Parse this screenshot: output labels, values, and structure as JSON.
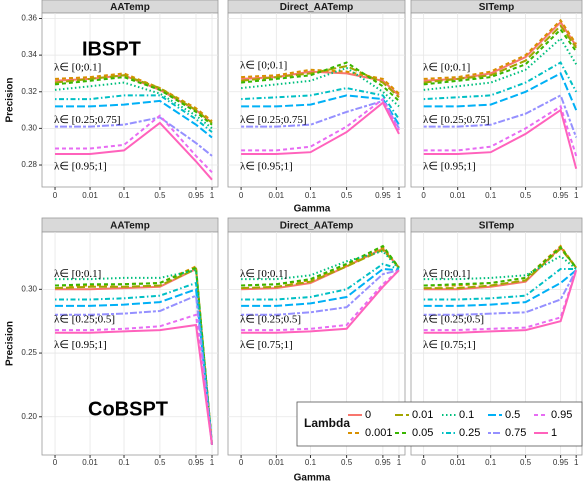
{
  "chart_data": {
    "type": "line",
    "x_label": "Gamma",
    "y_label": "Precision",
    "legend_title": "Lambda",
    "x": [
      0,
      0.01,
      0.1,
      0.5,
      0.95,
      1
    ],
    "xticks": [
      0,
      0.01,
      0.1,
      0.5,
      0.95,
      1
    ],
    "series": [
      {
        "name": "0",
        "color": "#F8766D",
        "linetype": "solid"
      },
      {
        "name": "0.001",
        "color": "#D89000",
        "linetype": "dashed"
      },
      {
        "name": "0.01",
        "color": "#A3A500",
        "linetype": "longdash"
      },
      {
        "name": "0.05",
        "color": "#39B600",
        "linetype": "dashed"
      },
      {
        "name": "0.1",
        "color": "#00BF7D",
        "linetype": "dotted"
      },
      {
        "name": "0.25",
        "color": "#00BFC4",
        "linetype": "dotdash"
      },
      {
        "name": "0.5",
        "color": "#00B0F6",
        "linetype": "longdash"
      },
      {
        "name": "0.75",
        "color": "#9590FF",
        "linetype": "twodash"
      },
      {
        "name": "0.95",
        "color": "#E76BF3",
        "linetype": "dashed"
      },
      {
        "name": "1",
        "color": "#FF62BC",
        "linetype": "solid"
      }
    ],
    "rows": [
      {
        "label": "IBSPT",
        "ylim": [
          0.268,
          0.363
        ],
        "yticks": [
          0.28,
          {
            "value": 0.3,
            "label": "0.30"
          },
          0.32,
          0.34,
          0.36
        ],
        "panels": [
          {
            "title": "AATemp",
            "annotations": [
              "λ∈ [0;0.1]",
              "λ∈ [0.25;0.75]",
              "λ∈ [0.95;1]"
            ],
            "values": [
              [
                0.326,
                0.327,
                0.329,
                0.321,
                0.31,
                0.303
              ],
              [
                0.327,
                0.328,
                0.33,
                0.322,
                0.311,
                0.304
              ],
              [
                0.325,
                0.327,
                0.329,
                0.322,
                0.31,
                0.303
              ],
              [
                0.324,
                0.326,
                0.328,
                0.321,
                0.309,
                0.302
              ],
              [
                0.321,
                0.323,
                0.325,
                0.319,
                0.307,
                0.3
              ],
              [
                0.316,
                0.316,
                0.318,
                0.318,
                0.305,
                0.298
              ],
              [
                0.312,
                0.312,
                0.313,
                0.315,
                0.302,
                0.295
              ],
              [
                0.301,
                0.301,
                0.302,
                0.306,
                0.292,
                0.285
              ],
              [
                0.289,
                0.289,
                0.291,
                0.307,
                0.285,
                0.276
              ],
              [
                0.286,
                0.286,
                0.288,
                0.303,
                0.282,
                0.272
              ]
            ]
          },
          {
            "title": "Direct_AATemp",
            "annotations": [
              "λ∈ [0;0.1]",
              "λ∈ [0.25;0.75]",
              "λ∈ [0.95;1]"
            ],
            "values": [
              [
                0.327,
                0.328,
                0.331,
                0.33,
                0.326,
                0.318
              ],
              [
                0.328,
                0.329,
                0.332,
                0.331,
                0.327,
                0.319
              ],
              [
                0.326,
                0.328,
                0.33,
                0.334,
                0.325,
                0.317
              ],
              [
                0.325,
                0.327,
                0.329,
                0.336,
                0.323,
                0.315
              ],
              [
                0.322,
                0.324,
                0.326,
                0.333,
                0.32,
                0.312
              ],
              [
                0.316,
                0.317,
                0.318,
                0.322,
                0.318,
                0.305
              ],
              [
                0.312,
                0.312,
                0.313,
                0.318,
                0.316,
                0.302
              ],
              [
                0.301,
                0.301,
                0.302,
                0.309,
                0.315,
                0.3
              ],
              [
                0.288,
                0.288,
                0.29,
                0.301,
                0.316,
                0.299
              ],
              [
                0.286,
                0.286,
                0.287,
                0.298,
                0.314,
                0.297
              ]
            ]
          },
          {
            "title": "SITemp",
            "annotations": [
              "λ∈ [0;0.1]",
              "λ∈ [0.25;0.75]",
              "λ∈ [0.95;1]"
            ],
            "values": [
              [
                0.326,
                0.327,
                0.33,
                0.339,
                0.358,
                0.345
              ],
              [
                0.327,
                0.328,
                0.331,
                0.34,
                0.359,
                0.346
              ],
              [
                0.325,
                0.327,
                0.329,
                0.337,
                0.356,
                0.344
              ],
              [
                0.324,
                0.326,
                0.328,
                0.335,
                0.354,
                0.342
              ],
              [
                0.321,
                0.323,
                0.325,
                0.332,
                0.349,
                0.335
              ],
              [
                0.316,
                0.317,
                0.318,
                0.325,
                0.336,
                0.32
              ],
              [
                0.312,
                0.312,
                0.313,
                0.32,
                0.33,
                0.31
              ],
              [
                0.301,
                0.301,
                0.302,
                0.308,
                0.318,
                0.295
              ],
              [
                0.288,
                0.288,
                0.29,
                0.3,
                0.312,
                0.285
              ],
              [
                0.286,
                0.286,
                0.287,
                0.297,
                0.31,
                0.278
              ]
            ]
          }
        ]
      },
      {
        "label": "CoBSPT",
        "ylim": [
          0.17,
          0.345
        ],
        "yticks": [
          {
            "value": 0.2,
            "label": "0.20"
          },
          0.25,
          {
            "value": 0.3,
            "label": "0.30"
          }
        ],
        "panels": [
          {
            "title": "AATemp",
            "annotations": [
              "λ∈ [0;0.1]",
              "λ∈ [0.25;0.5]",
              "λ∈ [0.95;1]"
            ],
            "values": [
              [
                0.3,
                0.3,
                0.301,
                0.302,
                0.316,
                0.178
              ],
              [
                0.303,
                0.303,
                0.304,
                0.305,
                0.318,
                0.178
              ],
              [
                0.301,
                0.302,
                0.302,
                0.303,
                0.316,
                0.178
              ],
              [
                0.303,
                0.304,
                0.304,
                0.305,
                0.317,
                0.178
              ],
              [
                0.308,
                0.308,
                0.309,
                0.309,
                0.315,
                0.178
              ],
              [
                0.292,
                0.292,
                0.293,
                0.295,
                0.305,
                0.178
              ],
              [
                0.287,
                0.287,
                0.288,
                0.29,
                0.3,
                0.178
              ],
              [
                0.28,
                0.28,
                0.281,
                0.283,
                0.295,
                0.178
              ],
              [
                0.268,
                0.268,
                0.269,
                0.271,
                0.28,
                0.178
              ],
              [
                0.266,
                0.266,
                0.267,
                0.268,
                0.272,
                0.178
              ]
            ]
          },
          {
            "title": "Direct_AATemp",
            "annotations": [
              "λ∈ [0;0.1]",
              "λ∈ [0.25;0.5]",
              "λ∈ [0.75;1]"
            ],
            "values": [
              [
                0.3,
                0.301,
                0.305,
                0.318,
                0.332,
                0.317
              ],
              [
                0.303,
                0.304,
                0.307,
                0.319,
                0.333,
                0.317
              ],
              [
                0.301,
                0.302,
                0.306,
                0.318,
                0.331,
                0.317
              ],
              [
                0.303,
                0.304,
                0.308,
                0.32,
                0.334,
                0.317
              ],
              [
                0.308,
                0.308,
                0.311,
                0.322,
                0.33,
                0.316
              ],
              [
                0.292,
                0.292,
                0.294,
                0.3,
                0.32,
                0.316
              ],
              [
                0.287,
                0.287,
                0.289,
                0.294,
                0.316,
                0.315
              ],
              [
                0.28,
                0.28,
                0.282,
                0.286,
                0.312,
                0.315
              ],
              [
                0.268,
                0.268,
                0.269,
                0.272,
                0.304,
                0.315
              ],
              [
                0.266,
                0.266,
                0.267,
                0.269,
                0.302,
                0.315
              ]
            ]
          },
          {
            "title": "SITemp",
            "annotations": [
              "λ∈ [0;0.1]",
              "λ∈ [0.25;0.5]",
              "λ∈ [0.75;1]"
            ],
            "values": [
              [
                0.3,
                0.3,
                0.302,
                0.306,
                0.333,
                0.317
              ],
              [
                0.303,
                0.303,
                0.305,
                0.309,
                0.334,
                0.317
              ],
              [
                0.301,
                0.301,
                0.303,
                0.307,
                0.332,
                0.317
              ],
              [
                0.303,
                0.304,
                0.305,
                0.309,
                0.333,
                0.317
              ],
              [
                0.308,
                0.308,
                0.309,
                0.311,
                0.326,
                0.316
              ],
              [
                0.292,
                0.292,
                0.293,
                0.295,
                0.316,
                0.316
              ],
              [
                0.287,
                0.287,
                0.288,
                0.29,
                0.305,
                0.315
              ],
              [
                0.28,
                0.28,
                0.281,
                0.282,
                0.292,
                0.315
              ],
              [
                0.268,
                0.268,
                0.269,
                0.27,
                0.278,
                0.315
              ],
              [
                0.266,
                0.266,
                0.267,
                0.268,
                0.275,
                0.315
              ]
            ]
          }
        ]
      }
    ]
  }
}
